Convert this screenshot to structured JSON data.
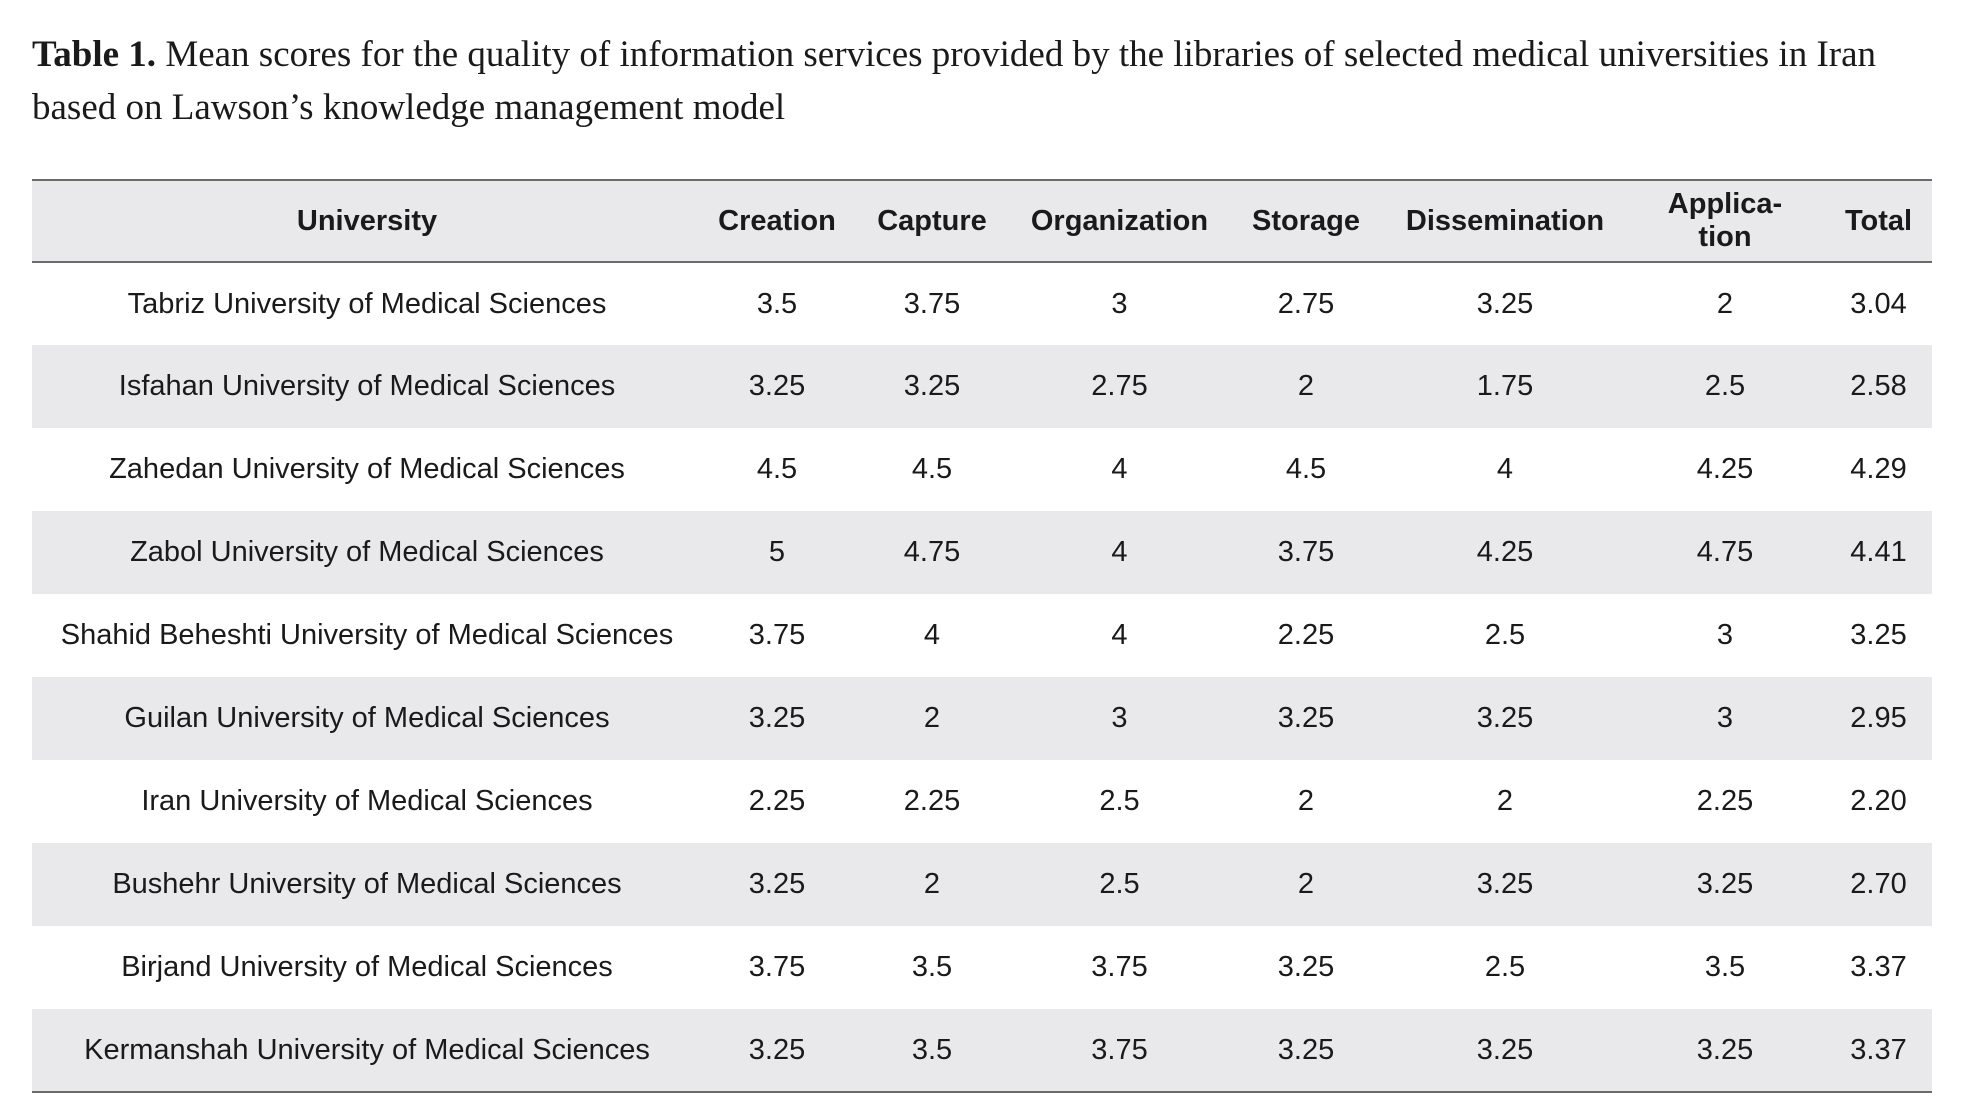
{
  "caption": {
    "label": "Table 1.",
    "text": " Mean scores for the quality of information services provided by the libraries of selected medical universities in Iran based on Lawson’s knowledge management model"
  },
  "table": {
    "headers": {
      "university": "University",
      "creation": "Creation",
      "capture": "Capture",
      "organization": "Organization",
      "storage": "Storage",
      "dissemination": "Dissemination",
      "application_line1": "Applica-",
      "application_line2": "tion",
      "total": "Total"
    },
    "rows": [
      {
        "university": "Tabriz University of Medical Sciences",
        "creation": "3.5",
        "capture": "3.75",
        "organization": "3",
        "storage": "2.75",
        "dissemination": "3.25",
        "application": "2",
        "total": "3.04"
      },
      {
        "university": "Isfahan University of Medical Sciences",
        "creation": "3.25",
        "capture": "3.25",
        "organization": "2.75",
        "storage": "2",
        "dissemination": "1.75",
        "application": "2.5",
        "total": "2.58"
      },
      {
        "university": "Zahedan University of Medical Sciences",
        "creation": "4.5",
        "capture": "4.5",
        "organization": "4",
        "storage": "4.5",
        "dissemination": "4",
        "application": "4.25",
        "total": "4.29"
      },
      {
        "university": "Zabol University of Medical Sciences",
        "creation": "5",
        "capture": "4.75",
        "organization": "4",
        "storage": "3.75",
        "dissemination": "4.25",
        "application": "4.75",
        "total": "4.41"
      },
      {
        "university": "Shahid Beheshti University of Medical Sciences",
        "creation": "3.75",
        "capture": "4",
        "organization": "4",
        "storage": "2.25",
        "dissemination": "2.5",
        "application": "3",
        "total": "3.25"
      },
      {
        "university": "Guilan University of Medical Sciences",
        "creation": "3.25",
        "capture": "2",
        "organization": "3",
        "storage": "3.25",
        "dissemination": "3.25",
        "application": "3",
        "total": "2.95"
      },
      {
        "university": "Iran University of Medical Sciences",
        "creation": "2.25",
        "capture": "2.25",
        "organization": "2.5",
        "storage": "2",
        "dissemination": "2",
        "application": "2.25",
        "total": "2.20"
      },
      {
        "university": "Bushehr University of Medical Sciences",
        "creation": "3.25",
        "capture": "2",
        "organization": "2.5",
        "storage": "2",
        "dissemination": "3.25",
        "application": "3.25",
        "total": "2.70"
      },
      {
        "university": "Birjand University of Medical Sciences",
        "creation": "3.75",
        "capture": "3.5",
        "organization": "3.75",
        "storage": "3.25",
        "dissemination": "2.5",
        "application": "3.5",
        "total": "3.37"
      },
      {
        "university": "Kermanshah University of Medical Sciences",
        "creation": "3.25",
        "capture": "3.5",
        "organization": "3.75",
        "storage": "3.25",
        "dissemination": "3.25",
        "application": "3.25",
        "total": "3.37"
      }
    ]
  }
}
